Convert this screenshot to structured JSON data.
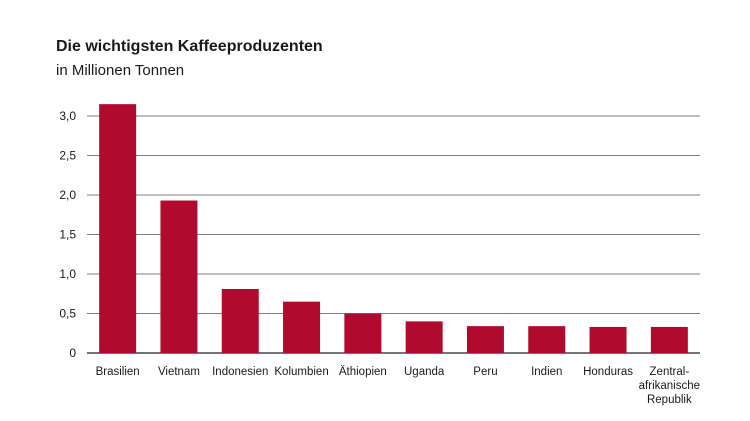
{
  "chart_data": {
    "type": "bar",
    "title": "Die wichtigsten Kaffeeproduzenten",
    "subtitle": "in Millionen Tonnen",
    "xlabel": "",
    "ylabel": "",
    "ylim": [
      0,
      3.25
    ],
    "yticks": [
      {
        "value": 0,
        "label": "0"
      },
      {
        "value": 0.5,
        "label": "0,5"
      },
      {
        "value": 1.0,
        "label": "1,0"
      },
      {
        "value": 1.5,
        "label": "1,5"
      },
      {
        "value": 2.0,
        "label": "2,0"
      },
      {
        "value": 2.5,
        "label": "2,5"
      },
      {
        "value": 3.0,
        "label": "3,0"
      }
    ],
    "categories": [
      "Brasilien",
      "Vietnam",
      "Indonesien",
      "Kolumbien",
      "Äthiopien",
      "Uganda",
      "Peru",
      "Indien",
      "Honduras",
      "Zentral-\nafrikanische\nRepublik"
    ],
    "values": [
      3.15,
      1.93,
      0.81,
      0.65,
      0.5,
      0.4,
      0.34,
      0.34,
      0.33,
      0.33
    ],
    "grid": true,
    "bar_color": "#b00b2e",
    "grid_color": "#555555"
  }
}
